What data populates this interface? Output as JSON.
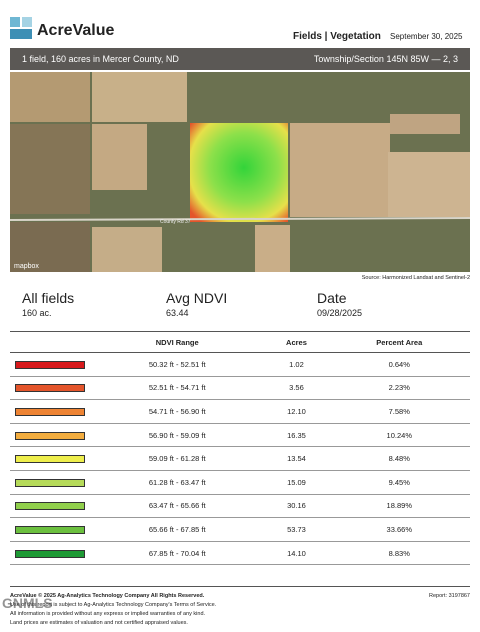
{
  "header": {
    "brand": "AcreValue",
    "report_type": "Fields | Vegetation",
    "date": "September 30, 2025"
  },
  "banner": {
    "left": "1 field, 160 acres in Mercer County, ND",
    "right_label": "Township/Section",
    "right_value": "145N 85W — 2, 3"
  },
  "map": {
    "road_label": "County Rd 37",
    "attribution": "mapbox",
    "source": "Source: Harmonized Landsat and Sentinel-2"
  },
  "summary": [
    {
      "label": "All fields",
      "value": "160 ac."
    },
    {
      "label": "Avg NDVI",
      "value": "63.44"
    },
    {
      "label": "Date",
      "value": "09/28/2025"
    }
  ],
  "table": {
    "columns": [
      "NDVI Range",
      "Acres",
      "Percent Area"
    ],
    "rows": [
      {
        "color": "#d7191c",
        "cells": [
          "50.32 ft - 52.51 ft",
          "1.02",
          "0.64%"
        ]
      },
      {
        "color": "#e4552b",
        "cells": [
          "52.51 ft - 54.71 ft",
          "3.56",
          "2.23%"
        ]
      },
      {
        "color": "#ee8434",
        "cells": [
          "54.71 ft - 56.90 ft",
          "12.10",
          "7.58%"
        ]
      },
      {
        "color": "#f3ad3f",
        "cells": [
          "56.90 ft - 59.09 ft",
          "16.35",
          "10.24%"
        ]
      },
      {
        "color": "#eeee4c",
        "cells": [
          "59.09 ft - 61.28 ft",
          "13.54",
          "8.48%"
        ]
      },
      {
        "color": "#b6db5a",
        "cells": [
          "61.28 ft - 63.47 ft",
          "15.09",
          "9.45%"
        ]
      },
      {
        "color": "#91d04c",
        "cells": [
          "63.47 ft - 65.66 ft",
          "30.16",
          "18.89%"
        ]
      },
      {
        "color": "#6cc03f",
        "cells": [
          "65.66 ft - 67.85 ft",
          "53.73",
          "33.66%"
        ]
      },
      {
        "color": "#1e9a35",
        "cells": [
          "67.85 ft - 70.04 ft",
          "14.10",
          "8.83%"
        ]
      }
    ]
  },
  "footer": {
    "copyright": "AcreValue © 2025 Ag-Analytics Technology Company All Rights Reserved.",
    "report": "Report: 3197867",
    "lines": [
      "Use of this report is subject to Ag-Analytics Technology Company's Terms of Service.",
      "All information is provided without any express or implied warranties of any kind.",
      "Land prices are estimates of valuation and not certified appraised values."
    ],
    "watermark": "GNMLS"
  }
}
